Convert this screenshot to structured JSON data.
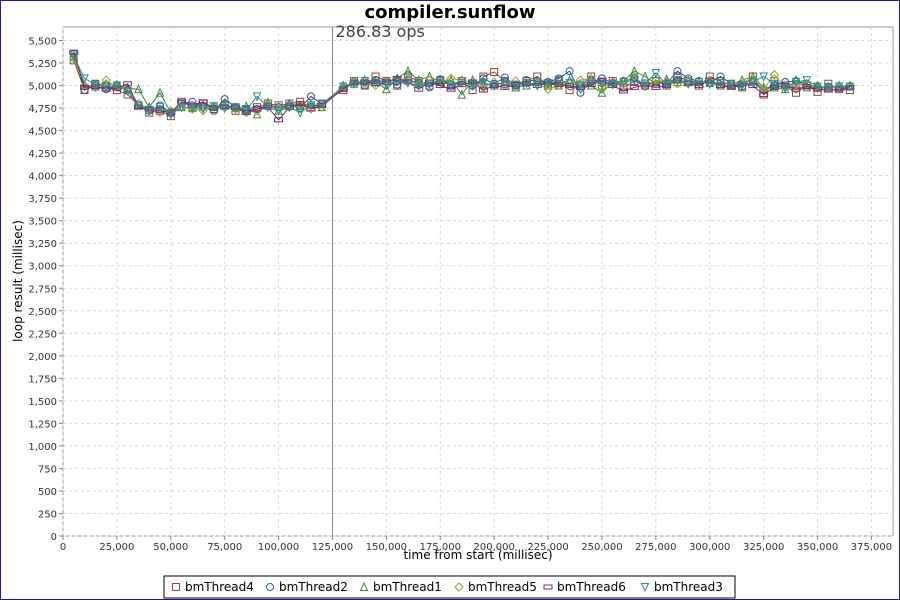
{
  "chart_data": {
    "type": "line",
    "title": "compiler.sunflow",
    "annotation": "286.83 ops",
    "marker_x": 125000,
    "xlabel": "time from start (millisec)",
    "ylabel": "loop result (millisec)",
    "xlim": [
      0,
      385000
    ],
    "ylim": [
      0,
      5650
    ],
    "x_ticks": [
      0,
      25000,
      50000,
      75000,
      100000,
      125000,
      150000,
      175000,
      200000,
      225000,
      250000,
      275000,
      300000,
      325000,
      350000,
      375000
    ],
    "x_tick_labels": [
      "0",
      "25,000",
      "50,000",
      "75,000",
      "100,000",
      "125,000",
      "150,000",
      "175,000",
      "200,000",
      "225,000",
      "250,000",
      "275,000",
      "300,000",
      "325,000",
      "350,000",
      "375,000"
    ],
    "y_ticks": [
      0,
      250,
      500,
      750,
      1000,
      1250,
      1500,
      1750,
      2000,
      2250,
      2500,
      2750,
      3000,
      3250,
      3500,
      3750,
      4000,
      4250,
      4500,
      4750,
      5000,
      5250,
      5500
    ],
    "y_tick_labels": [
      "0",
      "250",
      "500",
      "750",
      "1,000",
      "1,250",
      "1,500",
      "1,750",
      "2,000",
      "2,250",
      "2,500",
      "2,750",
      "3,000",
      "3,250",
      "3,500",
      "3,750",
      "4,000",
      "4,250",
      "4,500",
      "4,750",
      "5,000",
      "5,250",
      "5,500"
    ],
    "grid": true,
    "legend_position": "bottom",
    "series": [
      {
        "name": "bmThread4",
        "color": "#8b4a3c",
        "marker": "square",
        "x": [
          5000,
          10000,
          15000,
          20000,
          25000,
          30000,
          35000,
          40000,
          45000,
          50000,
          55000,
          60000,
          65000,
          70000,
          75000,
          80000,
          85000,
          90000,
          95000,
          100000,
          105000,
          110000,
          115000,
          120000,
          130000,
          135000,
          140000,
          145000,
          150000,
          155000,
          160000,
          165000,
          170000,
          175000,
          180000,
          185000,
          190000,
          195000,
          200000,
          205000,
          210000,
          215000,
          220000,
          225000,
          230000,
          235000,
          240000,
          245000,
          250000,
          255000,
          260000,
          265000,
          270000,
          275000,
          280000,
          285000,
          290000,
          295000,
          300000,
          305000,
          310000,
          315000,
          320000,
          325000,
          330000,
          335000,
          340000,
          345000,
          350000,
          355000,
          360000,
          365000
        ],
        "values": [
          5280,
          4950,
          5020,
          4980,
          4950,
          4900,
          4780,
          4700,
          4720,
          4660,
          4820,
          4760,
          4800,
          4740,
          4780,
          4720,
          4740,
          4760,
          4800,
          4780,
          4800,
          4820,
          4760,
          4800,
          4950,
          5050,
          5000,
          5100,
          5050,
          5000,
          5100,
          5050,
          5000,
          5050,
          5000,
          5050,
          4950,
          5100,
          5150,
          5050,
          5000,
          5050,
          5100,
          5000,
          5050,
          4950,
          5000,
          5100,
          5000,
          5050,
          4980,
          5050,
          5000,
          5050,
          5000,
          5100,
          5050,
          5000,
          5100,
          5050,
          5000,
          4980,
          5100,
          4900,
          5050,
          5000,
          4920,
          5000,
          4930,
          5020,
          4960,
          4950
        ]
      },
      {
        "name": "bmThread2",
        "color": "#2f5496",
        "marker": "circle",
        "x": [
          5000,
          10000,
          15000,
          20000,
          25000,
          30000,
          35000,
          40000,
          45000,
          50000,
          55000,
          60000,
          65000,
          70000,
          75000,
          80000,
          85000,
          90000,
          95000,
          100000,
          105000,
          110000,
          115000,
          120000,
          130000,
          135000,
          140000,
          145000,
          150000,
          155000,
          160000,
          165000,
          170000,
          175000,
          180000,
          185000,
          190000,
          195000,
          200000,
          205000,
          210000,
          215000,
          220000,
          225000,
          230000,
          235000,
          240000,
          245000,
          250000,
          255000,
          260000,
          265000,
          270000,
          275000,
          280000,
          285000,
          290000,
          295000,
          300000,
          305000,
          310000,
          315000,
          320000,
          325000,
          330000,
          335000,
          340000,
          345000,
          350000,
          355000,
          360000,
          365000
        ],
        "values": [
          5350,
          4950,
          5000,
          4960,
          5000,
          4950,
          4780,
          4720,
          4780,
          4700,
          4800,
          4820,
          4760,
          4720,
          4850,
          4760,
          4720,
          4740,
          4780,
          4760,
          4780,
          4750,
          4880,
          4800,
          4970,
          5040,
          5000,
          5060,
          5040,
          5010,
          5060,
          5030,
          4980,
          5070,
          5010,
          5050,
          5000,
          5080,
          5020,
          5090,
          5000,
          5060,
          5050,
          5040,
          5080,
          5160,
          4920,
          5040,
          5080,
          5030,
          5050,
          5080,
          4990,
          5050,
          5020,
          5160,
          5080,
          5050,
          5030,
          5100,
          5020,
          4990,
          5040,
          4950,
          5000,
          5040,
          5050,
          5020,
          4980,
          4990,
          4980,
          4990
        ]
      },
      {
        "name": "bmThread1",
        "color": "#3a8a3a",
        "marker": "triangle-up",
        "x": [
          5000,
          10000,
          15000,
          20000,
          25000,
          30000,
          35000,
          40000,
          45000,
          50000,
          55000,
          60000,
          65000,
          70000,
          75000,
          80000,
          85000,
          90000,
          95000,
          100000,
          105000,
          110000,
          115000,
          120000,
          130000,
          135000,
          140000,
          145000,
          150000,
          155000,
          160000,
          165000,
          170000,
          175000,
          180000,
          185000,
          190000,
          195000,
          200000,
          205000,
          210000,
          215000,
          220000,
          225000,
          230000,
          235000,
          240000,
          245000,
          250000,
          255000,
          260000,
          265000,
          270000,
          275000,
          280000,
          285000,
          290000,
          295000,
          300000,
          305000,
          310000,
          315000,
          320000,
          325000,
          330000,
          335000,
          340000,
          345000,
          350000,
          355000,
          360000,
          365000
        ],
        "values": [
          5330,
          5000,
          4990,
          5020,
          5010,
          4970,
          4960,
          4760,
          4920,
          4700,
          4760,
          4750,
          4780,
          4760,
          4790,
          4750,
          4770,
          4680,
          4810,
          4720,
          4800,
          4770,
          4790,
          4760,
          5000,
          5020,
          5060,
          5040,
          4960,
          5080,
          5160,
          5060,
          5100,
          5040,
          5060,
          4900,
          5060,
          5020,
          5000,
          5040,
          4980,
          5000,
          5040,
          5020,
          5000,
          5060,
          5020,
          5000,
          4920,
          5040,
          5050,
          5160,
          5100,
          5020,
          5070,
          5040,
          5060,
          5040,
          5030,
          5000,
          5010,
          5060,
          5100,
          4980,
          4980,
          4960,
          5060,
          4980,
          5000,
          4970,
          5000,
          4990
        ]
      },
      {
        "name": "bmThread5",
        "color": "#a0a030",
        "marker": "diamond",
        "x": [
          5000,
          10000,
          15000,
          20000,
          25000,
          30000,
          35000,
          40000,
          45000,
          50000,
          55000,
          60000,
          65000,
          70000,
          75000,
          80000,
          85000,
          90000,
          95000,
          100000,
          105000,
          110000,
          115000,
          120000,
          130000,
          135000,
          140000,
          145000,
          150000,
          155000,
          160000,
          165000,
          170000,
          175000,
          180000,
          185000,
          190000,
          195000,
          200000,
          205000,
          210000,
          215000,
          220000,
          225000,
          230000,
          235000,
          240000,
          245000,
          250000,
          255000,
          260000,
          265000,
          270000,
          275000,
          280000,
          285000,
          290000,
          295000,
          300000,
          305000,
          310000,
          315000,
          320000,
          325000,
          330000,
          335000,
          340000,
          345000,
          350000,
          355000,
          360000,
          365000
        ],
        "values": [
          5300,
          5000,
          4980,
          5060,
          4980,
          4960,
          4800,
          4740,
          4700,
          4720,
          4760,
          4740,
          4720,
          4770,
          4760,
          4740,
          4700,
          4720,
          4780,
          4740,
          4760,
          4780,
          4740,
          4760,
          4980,
          5040,
          5020,
          5000,
          5040,
          5060,
          5080,
          5000,
          5060,
          5040,
          5080,
          5060,
          5040,
          4980,
          5040,
          5000,
          5050,
          5030,
          5020,
          4960,
          5000,
          5020,
          5060,
          5080,
          4980,
          5020,
          5040,
          5100,
          5000,
          5060,
          5040,
          5020,
          5050,
          5030,
          5060,
          5000,
          5010,
          5040,
          5080,
          4960,
          5120,
          4980,
          5000,
          5020,
          4970,
          4980,
          4990,
          5000
        ]
      },
      {
        "name": "bmThread6",
        "color": "#7a2a6a",
        "marker": "bar",
        "x": [
          5000,
          10000,
          15000,
          20000,
          25000,
          30000,
          35000,
          40000,
          45000,
          50000,
          55000,
          60000,
          65000,
          70000,
          75000,
          80000,
          85000,
          90000,
          95000,
          100000,
          105000,
          110000,
          115000,
          120000,
          130000,
          135000,
          140000,
          145000,
          150000,
          155000,
          160000,
          165000,
          170000,
          175000,
          180000,
          185000,
          190000,
          195000,
          200000,
          205000,
          210000,
          215000,
          220000,
          225000,
          230000,
          235000,
          240000,
          245000,
          250000,
          255000,
          260000,
          265000,
          270000,
          275000,
          280000,
          285000,
          290000,
          295000,
          300000,
          305000,
          310000,
          315000,
          320000,
          325000,
          330000,
          335000,
          340000,
          345000,
          350000,
          355000,
          360000,
          365000
        ],
        "values": [
          5370,
          4980,
          4990,
          4960,
          4970,
          5020,
          4760,
          4740,
          4720,
          4700,
          4820,
          4780,
          4820,
          4750,
          4760,
          4760,
          4700,
          4740,
          4760,
          4620,
          4760,
          4800,
          4740,
          4780,
          4960,
          5030,
          5040,
          5020,
          5040,
          5080,
          5040,
          4960,
          5040,
          5000,
          4960,
          5010,
          5040,
          4950,
          5000,
          4980,
          5010,
          5020,
          5000,
          5040,
          5010,
          5000,
          4980,
          5010,
          5060,
          5000,
          4940,
          4980,
          5010,
          4980,
          5000,
          5060,
          5020,
          5000,
          5060,
          5000,
          4980,
          5020,
          5000,
          4900,
          4980,
          5000,
          4960,
          4990,
          4960,
          4950,
          4960,
          4980
        ]
      },
      {
        "name": "bmThread3",
        "color": "#2a8a9a",
        "marker": "triangle-down",
        "x": [
          5000,
          10000,
          15000,
          20000,
          25000,
          30000,
          35000,
          40000,
          45000,
          50000,
          55000,
          60000,
          65000,
          70000,
          75000,
          80000,
          85000,
          90000,
          95000,
          100000,
          105000,
          110000,
          115000,
          120000,
          130000,
          135000,
          140000,
          145000,
          150000,
          155000,
          160000,
          165000,
          170000,
          175000,
          180000,
          185000,
          190000,
          195000,
          200000,
          205000,
          210000,
          215000,
          220000,
          225000,
          230000,
          235000,
          240000,
          245000,
          250000,
          255000,
          260000,
          265000,
          270000,
          275000,
          280000,
          285000,
          290000,
          295000,
          300000,
          305000,
          310000,
          315000,
          320000,
          325000,
          330000,
          335000,
          340000,
          345000,
          350000,
          355000,
          360000,
          365000
        ],
        "values": [
          5320,
          5080,
          5010,
          4990,
          5000,
          4940,
          4780,
          4730,
          4760,
          4680,
          4760,
          4760,
          4740,
          4770,
          4750,
          4760,
          4730,
          4880,
          4760,
          4720,
          4760,
          4700,
          4780,
          4790,
          4990,
          5020,
          5050,
          5030,
          5010,
          5050,
          5030,
          5000,
          5020,
          5060,
          5000,
          5030,
          5010,
          5030,
          5000,
          5040,
          5010,
          5030,
          5000,
          5020,
          5060,
          5030,
          5000,
          5060,
          5020,
          5010,
          5040,
          5060,
          5020,
          5140,
          5010,
          5060,
          5020,
          5040,
          5020,
          5030,
          5020,
          5000,
          5040,
          5100,
          5020,
          4970,
          5040,
          5060,
          4990,
          4980,
          4990,
          4990
        ]
      }
    ]
  }
}
